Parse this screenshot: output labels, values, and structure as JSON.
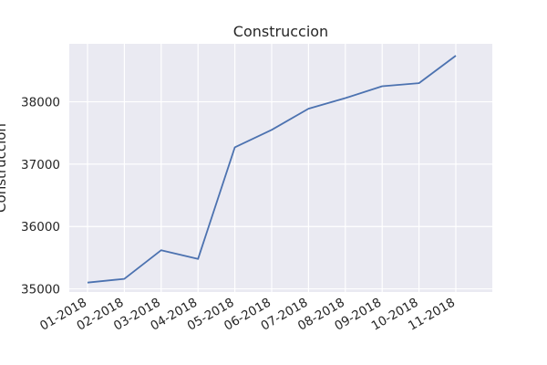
{
  "chart_data": {
    "type": "line",
    "title": "Construccion",
    "xlabel": "",
    "ylabel": "Construccion",
    "categories": [
      "01-2018",
      "02-2018",
      "03-2018",
      "04-2018",
      "05-2018",
      "06-2018",
      "07-2018",
      "08-2018",
      "09-2018",
      "10-2018",
      "11-2018"
    ],
    "series": [
      {
        "name": "",
        "values": [
          35100,
          35160,
          35620,
          35480,
          37270,
          37550,
          37890,
          38060,
          38250,
          38300,
          38740
        ],
        "color": "#4c72b0"
      }
    ],
    "y_ticks": [
      35000,
      36000,
      37000,
      38000
    ],
    "y_tick_labels": [
      "35000",
      "36000",
      "37000",
      "38000"
    ],
    "ylim": [
      34950,
      38930
    ],
    "grid": true,
    "background": "#eaeaf2",
    "legend": "none"
  }
}
